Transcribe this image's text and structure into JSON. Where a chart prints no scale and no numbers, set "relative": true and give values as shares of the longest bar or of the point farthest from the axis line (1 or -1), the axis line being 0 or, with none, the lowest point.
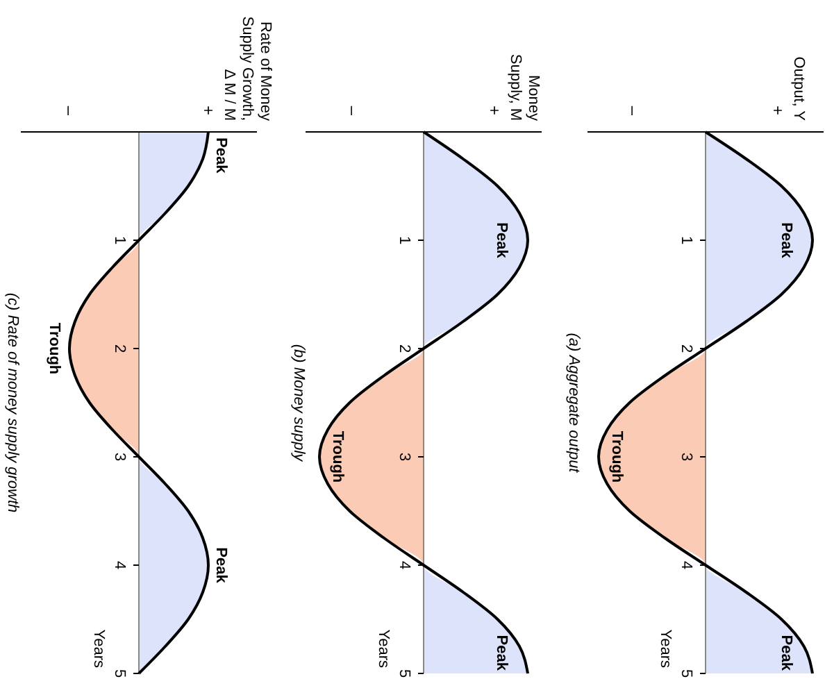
{
  "chart_data": [
    {
      "type": "line",
      "orientation": "horizontal",
      "title": "(a) Aggregate output",
      "ylabel": "Years",
      "relative": true,
      "grid": false,
      "ylim": [
        5,
        0
      ],
      "yticks": [
        1,
        2,
        3,
        4,
        5
      ],
      "x": [
        0,
        0.25,
        0.5,
        0.75,
        1,
        1.25,
        1.5,
        1.75,
        2,
        2.25,
        2.5,
        2.75,
        3,
        3.25,
        3.5,
        3.75,
        4,
        4.25,
        4.5,
        4.75,
        5
      ],
      "series": [
        {
          "type": "area",
          "color": "#dce3fb",
          "values": [
            0,
            0.38,
            0.71,
            0.92,
            1,
            0.92,
            0.71,
            0.38,
            0,
            0,
            0,
            0,
            0,
            0,
            0,
            0,
            0,
            0.38,
            0.71,
            0.92,
            1
          ]
        },
        {
          "type": "area",
          "color": "#fbcbb6",
          "values": [
            0,
            0,
            0,
            0,
            0,
            0,
            0,
            0,
            0,
            -0.38,
            -0.71,
            -0.92,
            -1,
            -0.92,
            -0.71,
            -0.38,
            0,
            0,
            0,
            0,
            0
          ]
        },
        {
          "type": "line",
          "color": "#000000",
          "values": [
            0,
            0.38,
            0.71,
            0.92,
            1,
            0.92,
            0.71,
            0.38,
            0,
            -0.38,
            -0.71,
            -0.92,
            -1,
            -0.92,
            -0.71,
            -0.38,
            0,
            0.38,
            0.71,
            0.92,
            1
          ]
        }
      ],
      "annotations": [
        "+",
        "–",
        "Output, Y",
        "Peak",
        "Trough",
        "Peak"
      ]
    },
    {
      "type": "line",
      "orientation": "horizontal",
      "title": "(b) Money supply",
      "ylabel": "Years",
      "relative": true,
      "grid": false,
      "ylim": [
        5,
        0
      ],
      "yticks": [
        1,
        2,
        3,
        4,
        5
      ],
      "x": [
        0,
        0.25,
        0.5,
        0.75,
        1,
        1.25,
        1.5,
        1.75,
        2,
        2.25,
        2.5,
        2.75,
        3,
        3.25,
        3.5,
        3.75,
        4,
        4.25,
        4.5,
        4.75,
        5
      ],
      "series": [
        {
          "type": "area",
          "color": "#dce3fb",
          "values": [
            0,
            0.38,
            0.71,
            0.92,
            1,
            0.92,
            0.71,
            0.38,
            0,
            0,
            0,
            0,
            0,
            0,
            0,
            0,
            0,
            0.38,
            0.71,
            0.92,
            1
          ]
        },
        {
          "type": "area",
          "color": "#fbcbb6",
          "values": [
            0,
            0,
            0,
            0,
            0,
            0,
            0,
            0,
            0,
            -0.38,
            -0.71,
            -0.92,
            -1,
            -0.92,
            -0.71,
            -0.38,
            0,
            0,
            0,
            0,
            0
          ]
        },
        {
          "type": "line",
          "color": "#000000",
          "values": [
            0,
            0.38,
            0.71,
            0.92,
            1,
            0.92,
            0.71,
            0.38,
            0,
            -0.38,
            -0.71,
            -0.92,
            -1,
            -0.92,
            -0.71,
            -0.38,
            0,
            0.38,
            0.71,
            0.92,
            1
          ]
        }
      ],
      "annotations": [
        "+",
        "–",
        "Money\nSupply, M",
        "Peak",
        "Trough",
        "Peak"
      ]
    },
    {
      "type": "line",
      "orientation": "horizontal",
      "title": "(c) Rate of money supply growth",
      "ylabel": "Years",
      "relative": true,
      "grid": false,
      "ylim": [
        5,
        0
      ],
      "yticks": [
        1,
        2,
        3,
        4,
        5
      ],
      "x": [
        0,
        0.25,
        0.5,
        0.75,
        1,
        1.25,
        1.5,
        1.75,
        2,
        2.25,
        2.5,
        2.75,
        3,
        3.25,
        3.5,
        3.75,
        4,
        4.25,
        4.5,
        4.75,
        5
      ],
      "series": [
        {
          "type": "area",
          "color": "#dce3fb",
          "values": [
            1,
            0.92,
            0.71,
            0.38,
            0,
            0,
            0,
            0,
            0,
            0,
            0,
            0,
            0,
            0.38,
            0.71,
            0.92,
            1,
            0.92,
            0.71,
            0.38,
            0
          ]
        },
        {
          "type": "area",
          "color": "#fbcbb6",
          "values": [
            0,
            0,
            0,
            0,
            0,
            -0.38,
            -0.71,
            -0.92,
            -1,
            -0.92,
            -0.71,
            -0.38,
            0,
            0,
            0,
            0,
            0,
            0,
            0,
            0,
            0
          ]
        },
        {
          "type": "line",
          "color": "#000000",
          "values": [
            1,
            0.92,
            0.71,
            0.38,
            0,
            -0.38,
            -0.71,
            -0.92,
            -1,
            -0.92,
            -0.71,
            -0.38,
            0,
            0.38,
            0.71,
            0.92,
            1,
            0.92,
            0.71,
            0.38,
            0
          ]
        }
      ],
      "annotations": [
        "+",
        "–",
        "Rate of Money\nSupply Growth,\nΔ M / M",
        "Peak",
        "Trough",
        "Peak"
      ]
    }
  ]
}
